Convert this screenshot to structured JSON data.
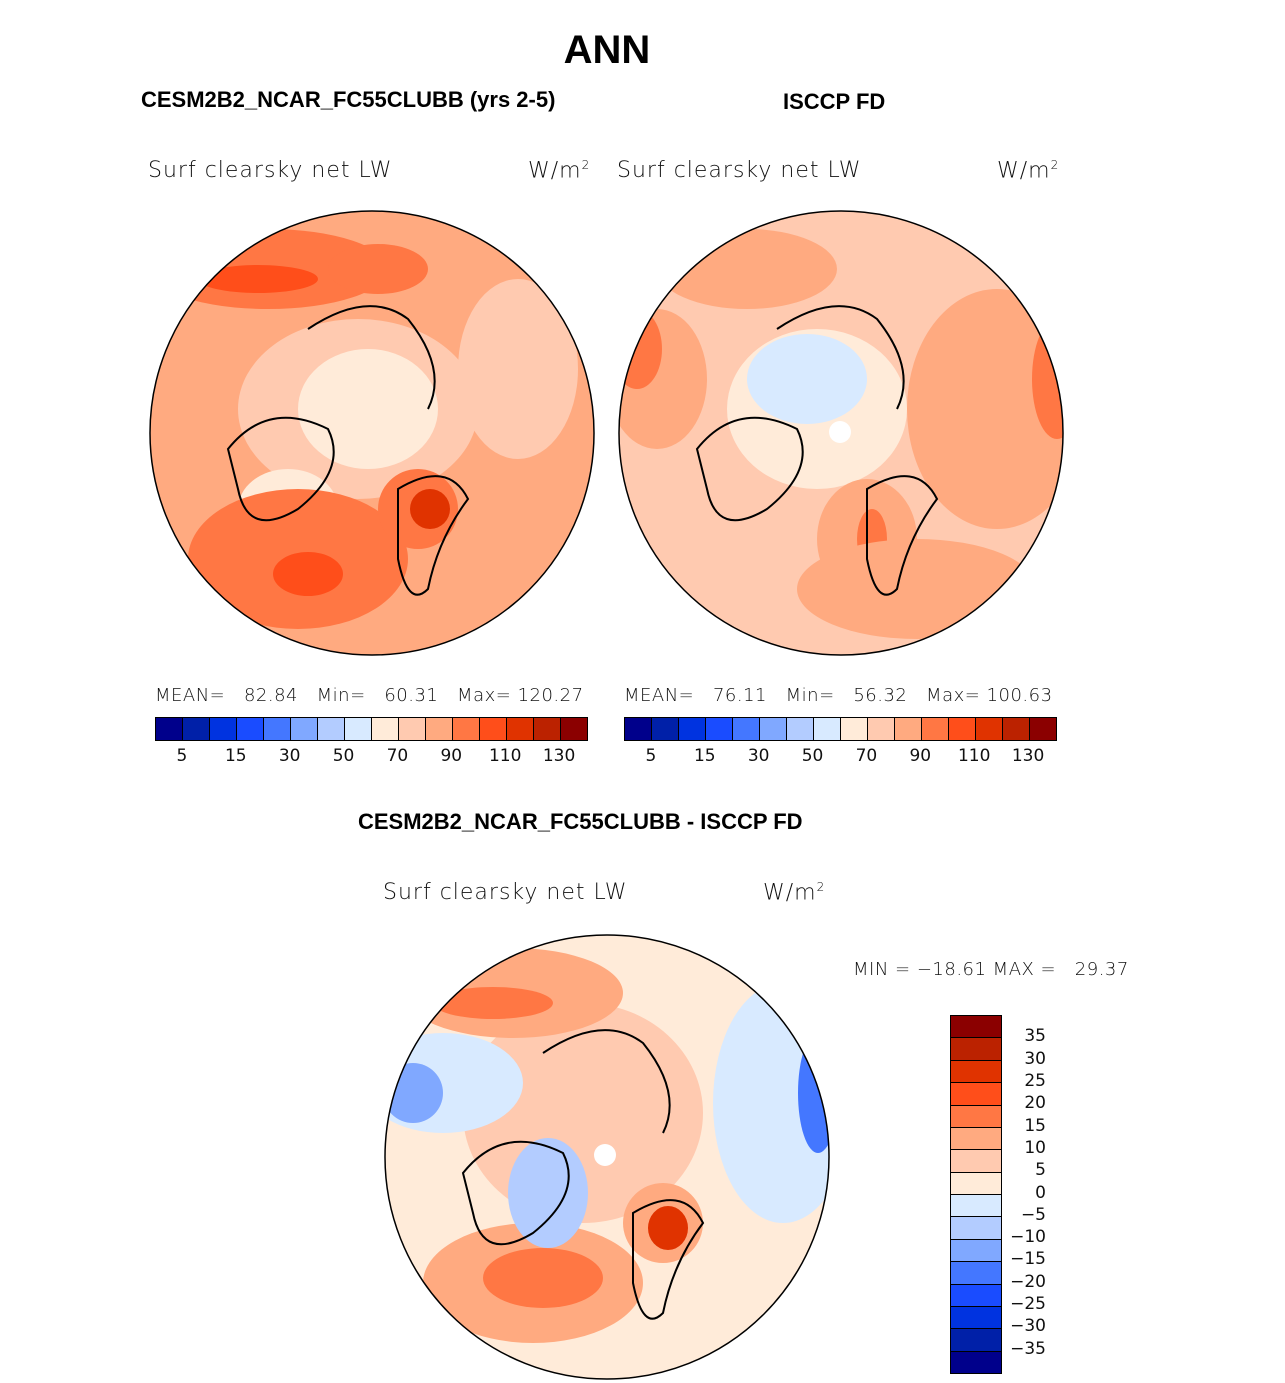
{
  "title": "ANN",
  "panels": [
    {
      "header": "CESM2B2_NCAR_FC55CLUBB (yrs 2-5)",
      "variable": "Surf clearsky net LW",
      "units": "W/m",
      "units_exp": "2",
      "stats": {
        "mean_label": "MEAN=",
        "mean": "82.84",
        "min_label": "Min=",
        "min": "60.31",
        "max_label": "Max=",
        "max": "120.27"
      }
    },
    {
      "header": "ISCCP FD",
      "variable": "Surf clearsky net LW",
      "units": "W/m",
      "units_exp": "2",
      "stats": {
        "mean_label": "MEAN=",
        "mean": "76.11",
        "min_label": "Min=",
        "min": "56.32",
        "max_label": "Max=",
        "max": "100.63"
      }
    }
  ],
  "diff": {
    "header": "CESM2B2_NCAR_FC55CLUBB - ISCCP FD",
    "variable": "Surf clearsky net LW",
    "units": "W/m",
    "units_exp": "2",
    "stats": "MIN = −18.61 MAX =   29.37"
  },
  "colorbar_colors": [
    "#00008b",
    "#0020a8",
    "#0033e0",
    "#1a4cff",
    "#4477ff",
    "#80a8ff",
    "#b3ccff",
    "#d8eaff",
    "#ffebd9",
    "#ffcab0",
    "#ffaa80",
    "#ff7744",
    "#ff4e1a",
    "#e03300",
    "#bb2200",
    "#8b0000"
  ],
  "colorbar_labels": [
    "5",
    "15",
    "30",
    "50",
    "70",
    "90",
    "110",
    "130"
  ],
  "diff_colorbar_labels": [
    "35",
    "30",
    "25",
    "20",
    "15",
    "10",
    "5",
    "0",
    "−5",
    "−10",
    "−15",
    "−20",
    "−25",
    "−30",
    "−35"
  ]
}
